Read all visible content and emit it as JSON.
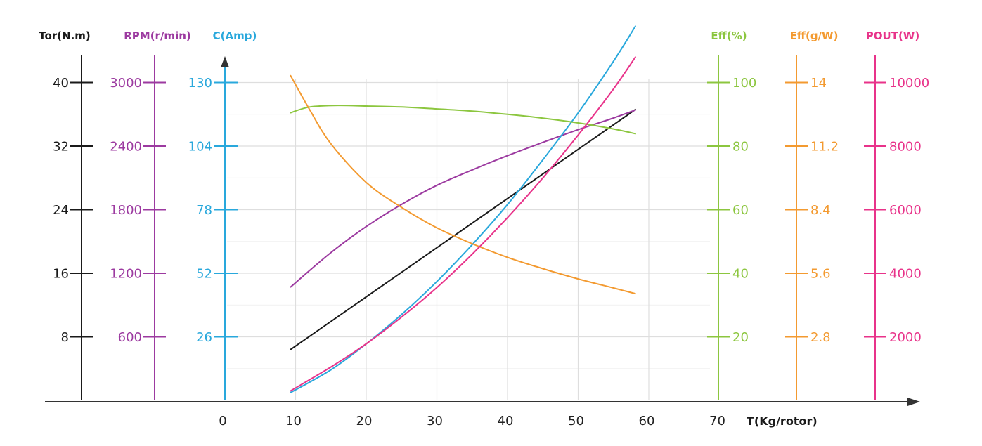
{
  "chart_data": {
    "type": "line",
    "xlabel": "T(Kg/rotor)",
    "x_ticks": [
      "0",
      "10",
      "20",
      "30",
      "40",
      "50",
      "60",
      "70"
    ],
    "xlim": [
      0,
      70
    ],
    "grid": true,
    "axes": [
      {
        "label": "Tor(N.m)",
        "side": "left",
        "color": "#1a1a1a",
        "ticks": [
          "8",
          "16",
          "24",
          "32",
          "40"
        ],
        "ylim": [
          0,
          48
        ]
      },
      {
        "label": "RPM(r/min)",
        "side": "left",
        "color": "#9c3aa0",
        "ticks": [
          "600",
          "1200",
          "1800",
          "2400",
          "3000"
        ],
        "ylim": [
          0,
          3600
        ]
      },
      {
        "label": "C(Amp)",
        "side": "left",
        "color": "#29a8dc",
        "ticks": [
          "26",
          "52",
          "78",
          "104",
          "130"
        ],
        "ylim": [
          0,
          156
        ]
      },
      {
        "label": "Eff(%)",
        "side": "right",
        "color": "#8cc63f",
        "ticks": [
          "20",
          "40",
          "60",
          "80",
          "100"
        ],
        "ylim": [
          0,
          120
        ]
      },
      {
        "label": "Eff(g/W)",
        "side": "right",
        "color": "#f39a30",
        "ticks": [
          "2.8",
          "5.6",
          "8.4",
          "11.2",
          "14"
        ],
        "ylim": [
          0,
          16.8
        ]
      },
      {
        "label": "POUT(W)",
        "side": "right",
        "color": "#e8338a",
        "ticks": [
          "2000",
          "4000",
          "6000",
          "8000",
          "10000"
        ],
        "ylim": [
          0,
          12000
        ]
      }
    ],
    "series": [
      {
        "axis": "Tor(N.m)",
        "color": "#1a1a1a",
        "x": [
          9.3,
          58.1
        ],
        "y": [
          6.4,
          36.6
        ]
      },
      {
        "axis": "RPM(r/min)",
        "color": "#9c3aa0",
        "x": [
          9.3,
          15,
          20,
          25,
          30,
          35,
          40,
          45,
          50,
          55,
          58.1
        ],
        "y": [
          1070,
          1395,
          1640,
          1850,
          2030,
          2175,
          2310,
          2435,
          2555,
          2665,
          2740
        ]
      },
      {
        "axis": "C(Amp)",
        "color": "#29a8dc",
        "x": [
          9.3,
          15,
          20,
          25,
          30,
          35,
          40,
          45,
          50,
          55,
          58.1
        ],
        "y": [
          3.2,
          12.5,
          23.1,
          35.1,
          48.6,
          63.7,
          80.1,
          98.4,
          117.6,
          138.7,
          153.0
        ]
      },
      {
        "axis": "Eff(%)",
        "color": "#8cc63f",
        "x": [
          9.3,
          12,
          16,
          20,
          25,
          30,
          35,
          40,
          45,
          50,
          55,
          58.1
        ],
        "y": [
          90.5,
          92.3,
          92.8,
          92.6,
          92.3,
          91.7,
          91.0,
          90.0,
          88.8,
          87.3,
          85.4,
          83.9
        ]
      },
      {
        "axis": "Eff(g/W)",
        "color": "#f39a30",
        "x": [
          9.3,
          12,
          15,
          20,
          25,
          30,
          35,
          40,
          45,
          50,
          55,
          58.1
        ],
        "y": [
          14.3,
          12.8,
          11.3,
          9.6,
          8.5,
          7.6,
          6.9,
          6.3,
          5.8,
          5.35,
          4.95,
          4.7
        ]
      },
      {
        "axis": "POUT(W)",
        "color": "#e8338a",
        "x": [
          9.3,
          15,
          20,
          25,
          30,
          35,
          40,
          45,
          50,
          55,
          58.1
        ],
        "y": [
          300,
          1050,
          1780,
          2620,
          3550,
          4600,
          5750,
          7000,
          8350,
          9800,
          10800
        ]
      }
    ]
  }
}
